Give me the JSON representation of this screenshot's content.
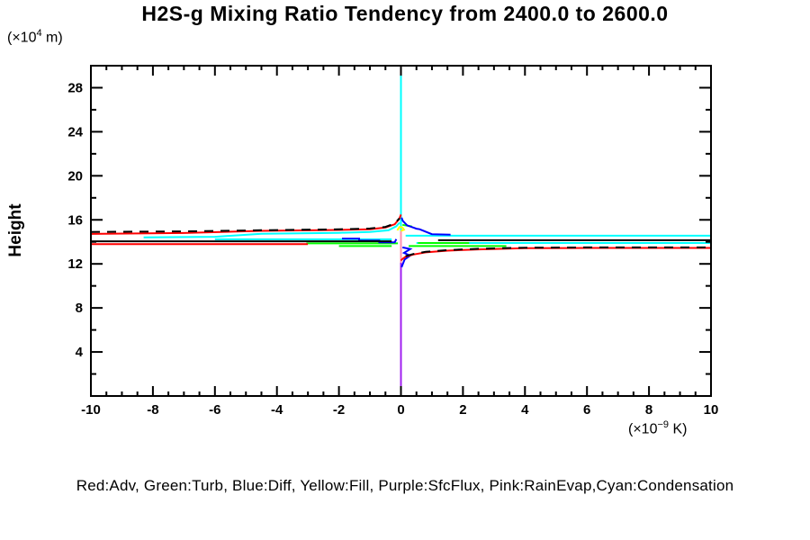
{
  "header": {
    "title": "H2S-g Mixing Ratio Tendency from 2400.0 to 2600.0"
  },
  "axes": {
    "y_unit_prefix": "(×10",
    "y_unit_sup": "4",
    "y_unit_suffix": " m)",
    "x_unit_prefix": "(×10",
    "x_unit_sup": "−9",
    "x_unit_suffix": " K)",
    "y_axis_label": "Height"
  },
  "legend": {
    "text": "Red:Adv, Green:Turb, Blue:Diff, Yellow:Fill, Purple:SfcFlux, Pink:RainEvap,Cyan:Condensation"
  },
  "chart_data": {
    "type": "line",
    "title": "H2S-g Mixing Ratio Tendency from 2400.0 to 2600.0",
    "xlabel": "(×10^-9 K)",
    "ylabel": "Height (×10^4 m)",
    "xlim": [
      -10,
      10
    ],
    "ylim": [
      0,
      30
    ],
    "grid": false,
    "x_ticks": [
      -10,
      -8,
      -6,
      -4,
      -2,
      0,
      2,
      4,
      6,
      8,
      10
    ],
    "x_tick_labels": [
      "-10",
      "-8",
      "-6",
      "-4",
      "-2",
      "0",
      "2",
      "4",
      "6",
      "8",
      "10"
    ],
    "x_minor_step": 0.5,
    "y_ticks": [
      4,
      8,
      12,
      16,
      20,
      24,
      28
    ],
    "y_tick_labels": [
      "4",
      "8",
      "12",
      "16",
      "20",
      "24",
      "28"
    ],
    "y_minor_step": 2,
    "zero_line": {
      "x": 0,
      "color": "#00ffff"
    },
    "series": [
      {
        "name": "Condensation",
        "color": "#00ffff",
        "dash": null,
        "segments": [
          [
            [
              0,
              0
            ],
            [
              0,
              30
            ]
          ],
          [
            [
              -8.3,
              14.4
            ],
            [
              -6,
              14.46
            ],
            [
              -4.5,
              14.74
            ],
            [
              -2,
              14.82
            ],
            [
              -1,
              14.9
            ],
            [
              -0.4,
              15.05
            ],
            [
              -0.15,
              15.42
            ],
            [
              -0.04,
              15.75
            ]
          ],
          [
            [
              -6.0,
              14.23
            ],
            [
              -0.3,
              14.23
            ]
          ],
          [
            [
              0.15,
              14.56
            ],
            [
              10,
              14.56
            ]
          ],
          [
            [
              0.5,
              13.9
            ],
            [
              10,
              13.9
            ]
          ]
        ]
      },
      {
        "name": "SfcFlux",
        "color": "#a020f0",
        "dash": null,
        "segments": [
          [
            [
              0,
              0
            ],
            [
              0,
              14.6
            ]
          ]
        ]
      },
      {
        "name": "RainEvap",
        "color": "#ff8faf",
        "dash": null,
        "segments": [
          [
            [
              0,
              12.1
            ],
            [
              0,
              15.0
            ]
          ]
        ]
      },
      {
        "name": "Turb",
        "color": "#00ff00",
        "dash": null,
        "segments": [
          [
            [
              -3.05,
              13.86
            ],
            [
              -0.1,
              13.86
            ]
          ],
          [
            [
              -2.0,
              13.62
            ],
            [
              -0.3,
              13.62
            ]
          ],
          [
            [
              0.05,
              15.55
            ],
            [
              0.35,
              15.4
            ]
          ],
          [
            [
              0.25,
              13.62
            ],
            [
              3.4,
              13.62
            ]
          ],
          [
            [
              0.55,
              13.9
            ],
            [
              2.2,
              13.9
            ]
          ]
        ]
      },
      {
        "name": "Diff",
        "color": "#0000ff",
        "dash": null,
        "segments": [
          [
            [
              -1.9,
              14.3
            ],
            [
              -1.35,
              14.3
            ],
            [
              -1.35,
              14.12
            ],
            [
              -0.7,
              14.12
            ],
            [
              -0.7,
              13.95
            ],
            [
              -0.2,
              13.95
            ],
            [
              -0.15,
              14.25
            ]
          ],
          [
            [
              0.02,
              16.2
            ],
            [
              0.06,
              15.9
            ],
            [
              0.2,
              15.5
            ],
            [
              0.5,
              15.2
            ],
            [
              0.6,
              15.15
            ],
            [
              1.0,
              14.7
            ],
            [
              1.6,
              14.65
            ]
          ],
          [
            [
              0.05,
              13.5
            ],
            [
              0.3,
              13.35
            ],
            [
              0.1,
              13.0
            ],
            [
              0.3,
              12.75
            ],
            [
              0.12,
              12.4
            ],
            [
              0.05,
              11.9
            ],
            [
              0.02,
              11.7
            ]
          ]
        ]
      },
      {
        "name": "Fill",
        "color": "#ffff00",
        "dash": null,
        "segments": [
          [
            [
              -0.12,
              15.05
            ],
            [
              -0.05,
              15.35
            ],
            [
              0.05,
              15.3
            ],
            [
              0.1,
              15.1
            ],
            [
              0,
              15.0
            ]
          ]
        ]
      },
      {
        "name": "Adv",
        "color": "#ff0000",
        "dash": null,
        "segments": [
          [
            [
              -10,
              14.72
            ],
            [
              -7,
              14.8
            ],
            [
              -4.5,
              15.0
            ],
            [
              -2,
              15.08
            ],
            [
              -1,
              15.15
            ],
            [
              -0.5,
              15.3
            ],
            [
              -0.2,
              15.6
            ],
            [
              -0.05,
              16.1
            ],
            [
              0,
              16.48
            ]
          ],
          [
            [
              -10,
              13.8
            ],
            [
              -3.0,
              13.8
            ]
          ],
          [
            [
              0,
              12.3
            ],
            [
              0.05,
              12.45
            ],
            [
              0.15,
              12.65
            ],
            [
              0.4,
              12.85
            ],
            [
              0.8,
              13.05
            ],
            [
              1.5,
              13.2
            ],
            [
              2.5,
              13.32
            ],
            [
              4,
              13.42
            ],
            [
              6,
              13.45
            ],
            [
              10,
              13.45
            ]
          ]
        ]
      },
      {
        "name": "black-dashed",
        "color": "#000000",
        "dash": [
          10,
          8
        ],
        "segments": [
          [
            [
              -10,
              14.9
            ],
            [
              -7,
              14.95
            ],
            [
              -4.5,
              15.06
            ],
            [
              -2,
              15.14
            ],
            [
              -1,
              15.21
            ],
            [
              -0.5,
              15.36
            ],
            [
              -0.2,
              15.66
            ],
            [
              -0.05,
              16.14
            ]
          ],
          [
            [
              0.15,
              12.7
            ],
            [
              0.4,
              12.9
            ],
            [
              0.8,
              13.1
            ],
            [
              1.5,
              13.25
            ],
            [
              2.5,
              13.37
            ],
            [
              4,
              13.47
            ],
            [
              6,
              13.5
            ],
            [
              10,
              13.5
            ]
          ]
        ]
      },
      {
        "name": "black-solid",
        "color": "#000000",
        "dash": null,
        "segments": [
          [
            [
              -10,
              14.05
            ],
            [
              -0.3,
              14.05
            ]
          ],
          [
            [
              1.2,
              14.15
            ],
            [
              10,
              14.15
            ]
          ]
        ]
      }
    ]
  }
}
